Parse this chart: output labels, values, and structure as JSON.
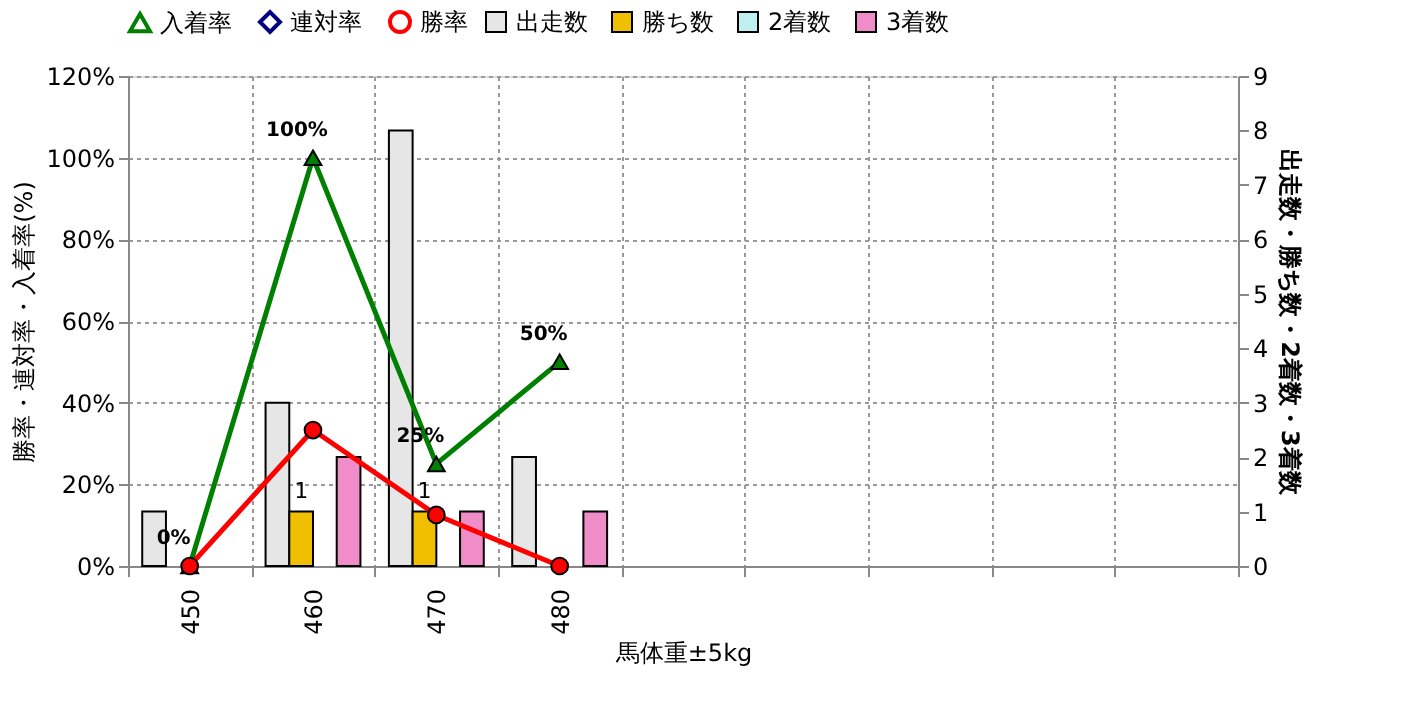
{
  "chart_data": {
    "type": "bar",
    "xlabel": "馬体重±5kg",
    "ylabel": "勝率・連対率・入着率(%)",
    "y2label": "出走数・勝ち数・2着数・3着数",
    "categories": [
      "450",
      "460",
      "470",
      "480",
      null,
      null,
      null,
      null,
      null
    ],
    "series": [
      {
        "name": "出走数",
        "color": "#e6e6e6",
        "axis": "y2",
        "values": [
          1,
          3,
          8,
          2,
          null,
          null,
          null,
          null,
          null
        ]
      },
      {
        "name": "勝ち数",
        "color": "#f0c000",
        "axis": "y2",
        "values": [
          0,
          1,
          1,
          0,
          null,
          null,
          null,
          null,
          null
        ],
        "value_labels": [
          null,
          "1",
          "1",
          null,
          null,
          null,
          null,
          null,
          null
        ]
      },
      {
        "name": "2着数",
        "color": "#bff0f0",
        "axis": "y2",
        "values": [
          0,
          0,
          0,
          0,
          null,
          null,
          null,
          null,
          null
        ]
      },
      {
        "name": "3着数",
        "color": "#f08cc8",
        "axis": "y2",
        "values": [
          0,
          2,
          1,
          1,
          null,
          null,
          null,
          null,
          null
        ]
      },
      {
        "name": "入着率",
        "type": "line",
        "color": "#008000",
        "marker": "triangle",
        "values": [
          0,
          100,
          25,
          50,
          null,
          null,
          null,
          null,
          null
        ],
        "value_labels": [
          "0%",
          "100%",
          "25%",
          "50%",
          null,
          null,
          null,
          null,
          null
        ]
      },
      {
        "name": "連対率",
        "type": "line",
        "color": "#000080",
        "marker": "diamond",
        "values": [
          null,
          null,
          null,
          null,
          null,
          null,
          null,
          null,
          null
        ]
      },
      {
        "name": "勝率",
        "type": "line",
        "color": "#ff0000",
        "marker": "circle",
        "values": [
          0,
          33.3,
          12.5,
          0,
          null,
          null,
          null,
          null,
          null
        ]
      }
    ],
    "ylim": [
      0,
      120
    ],
    "yticks": [
      {
        "value": 0,
        "label": "0%"
      },
      {
        "value": 20,
        "label": "20%"
      },
      {
        "value": 40,
        "label": "40%"
      },
      {
        "value": 60,
        "label": "60%"
      },
      {
        "value": 80,
        "label": "80%"
      },
      {
        "value": 100,
        "label": "100%"
      },
      {
        "value": 120,
        "label": "120%"
      }
    ],
    "y2lim": [
      0,
      9
    ],
    "y2ticks": [
      0,
      1,
      2,
      3,
      4,
      5,
      6,
      7,
      8,
      9
    ],
    "grid": true,
    "legend": "top"
  }
}
